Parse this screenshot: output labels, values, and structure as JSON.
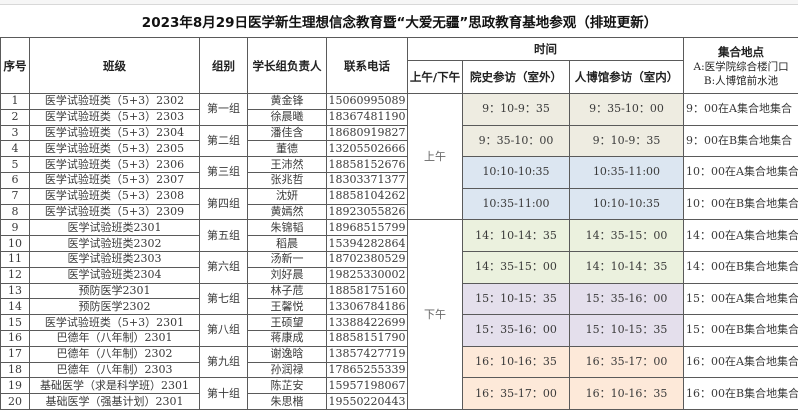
{
  "title": "2023年8月29日医学新生理想信念教育暨“大爱无疆”思政教育基地参观（排班更新）",
  "headers": {
    "seq": "序号",
    "class": "班级",
    "group": "组别",
    "leader": "学长组负责人",
    "phone": "联系电话",
    "time": "时间",
    "session": "上午/下午",
    "history": "院史参访（室外）",
    "museum": "人博馆参访（室内）",
    "meeting": "集合地点",
    "meeting_a": "A:医学院综合楼门口",
    "meeting_b": "B:人博馆前水池"
  },
  "sessions": [
    "上午",
    "下午"
  ],
  "groups": [
    "第一组",
    "第二组",
    "第三组",
    "第四组",
    "第五组",
    "第六组",
    "第七组",
    "第八组",
    "第九组",
    "第十组"
  ],
  "rows": [
    {
      "seq": "1",
      "class": "医学试验班类（5+3）2302",
      "leader": "黄金锋",
      "phone": "15060995089"
    },
    {
      "seq": "2",
      "class": "医学试验班类（5+3）2303",
      "leader": "徐晨曦",
      "phone": "18367481190"
    },
    {
      "seq": "3",
      "class": "医学试验班类（5+3）2304",
      "leader": "潘佳含",
      "phone": "18680919827"
    },
    {
      "seq": "4",
      "class": "医学试验班类（5+3）2305",
      "leader": "董德",
      "phone": "13205502666"
    },
    {
      "seq": "5",
      "class": "医学试验班类（5+3）2306",
      "leader": "王沛然",
      "phone": "18858152676"
    },
    {
      "seq": "6",
      "class": "医学试验班类（5+3）2307",
      "leader": "张兆哲",
      "phone": "18303371377"
    },
    {
      "seq": "7",
      "class": "医学试验班类（5+3）2308",
      "leader": "沈妍",
      "phone": "18858104262"
    },
    {
      "seq": "8",
      "class": "医学试验班类（5+3）2309",
      "leader": "黄嫣然",
      "phone": "18923055826"
    },
    {
      "seq": "9",
      "class": "医学试验班类2301",
      "leader": "朱锦韬",
      "phone": "18968515799"
    },
    {
      "seq": "10",
      "class": "医学试验班类2302",
      "leader": "稻晨",
      "phone": "15394282864"
    },
    {
      "seq": "11",
      "class": "医学试验班类2303",
      "leader": "汤新一",
      "phone": "18702380529"
    },
    {
      "seq": "12",
      "class": "医学试验班类2304",
      "leader": "刘好晨",
      "phone": "19825330002"
    },
    {
      "seq": "13",
      "class": "预防医学2301",
      "leader": "林子苊",
      "phone": "18858175160"
    },
    {
      "seq": "14",
      "class": "预防医学2302",
      "leader": "王馨悦",
      "phone": "13306784186"
    },
    {
      "seq": "15",
      "class": "医学试验班类（5+3）2301",
      "leader": "王硕望",
      "phone": "13388422699"
    },
    {
      "seq": "16",
      "class": "巴德年（八年制）2301",
      "leader": "蒋康成",
      "phone": "18858151790"
    },
    {
      "seq": "17",
      "class": "巴德年（八年制）2302",
      "leader": "谢逸晗",
      "phone": "13857427719"
    },
    {
      "seq": "18",
      "class": "巴德年（八年制）2303",
      "leader": "孙润禄",
      "phone": "17865255339"
    },
    {
      "seq": "19",
      "class": "基础医学（求是科学班）2301",
      "leader": "陈芷安",
      "phone": "15957198067"
    },
    {
      "seq": "20",
      "class": "基础医学（强基计划）2301",
      "leader": "朱思楷",
      "phone": "19550220443"
    }
  ],
  "slots": [
    {
      "history": "9：10-9：35",
      "museum": "9：35-10：00",
      "meeting": "9：00在A集合地集合",
      "color": "#eeece1"
    },
    {
      "history": "9：35-10：00",
      "museum": "9：10-9：35",
      "meeting": "9：00在B集合地集合",
      "color": "#eeece1"
    },
    {
      "history": "10:10-10:35",
      "museum": "10:35-11:00",
      "meeting": "10：00在A集合地集合",
      "color": "#dce6f1"
    },
    {
      "history": "10:35-11:00",
      "museum": "10:10-10:35",
      "meeting": "10：00在B集合地集合",
      "color": "#dce6f1"
    },
    {
      "history": "14：10-14：35",
      "museum": "14：35-15：00",
      "meeting": "14：00在A集合地集合",
      "color": "#ebf1de"
    },
    {
      "history": "14：35-15：00",
      "museum": "14：10-14：35",
      "meeting": "14：00在B集合地集合",
      "color": "#ebf1de"
    },
    {
      "history": "15：10-15：35",
      "museum": "15：35-16：00",
      "meeting": "15：00在A集合地集合",
      "color": "#e4dfec"
    },
    {
      "history": "15：35-16：00",
      "museum": "15：10-15：35",
      "meeting": "15：00在B集合地集合",
      "color": "#e4dfec"
    },
    {
      "history": "16：10-16：35",
      "museum": "16：35-17：00",
      "meeting": "16：00在A集合地集合",
      "color": "#fde9d9"
    },
    {
      "history": "16：35-17：00",
      "museum": "16：10-16：35",
      "meeting": "16：00在B集合地集合",
      "color": "#fde9d9"
    }
  ]
}
